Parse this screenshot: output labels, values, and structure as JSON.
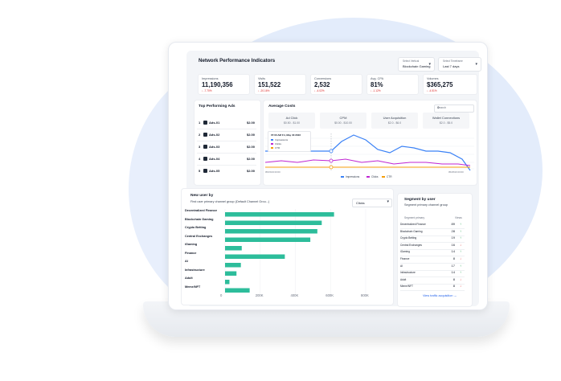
{
  "dashboard": {
    "title": "Network Performance Indicators"
  },
  "filters": {
    "vertical": {
      "label": "Select Vertical",
      "value": "Blockchain Gaming"
    },
    "timeframe": {
      "label": "Select Timeframe",
      "value": "Last 7 days"
    }
  },
  "kpis": [
    {
      "label": "Impressions",
      "value": "11,190,356",
      "delta": "↓ -7.70%"
    },
    {
      "label": "Visits",
      "value": "151,522",
      "delta": "↓ -20.16%"
    },
    {
      "label": "Conversions",
      "value": "2,532",
      "delta": "↓ -4.02%"
    },
    {
      "label": "Avg. CPA",
      "value": "81%",
      "delta": "↓ -1.12%"
    },
    {
      "label": "Volumes",
      "value": "$365,275",
      "delta": "↓ -4.51%"
    }
  ],
  "top_ads": {
    "title": "Top Performing Ads",
    "rows": [
      {
        "n": "1",
        "name": "Ads-01",
        "price": "$2.00"
      },
      {
        "n": "2",
        "name": "Ads-02",
        "price": "$2.00"
      },
      {
        "n": "3",
        "name": "Ads-03",
        "price": "$2.00"
      },
      {
        "n": "4",
        "name": "Ads-04",
        "price": "$2.00"
      },
      {
        "n": "5",
        "name": "Ads-05",
        "price": "$2.00"
      }
    ]
  },
  "avg_costs": {
    "title": "Average Costs",
    "search_placeholder": "Search",
    "items": [
      {
        "title": "Ad Click",
        "range": "$0.50 - $1.00"
      },
      {
        "title": "CPM",
        "range": "$0.00 - $10.00"
      },
      {
        "title": "User Acquisition",
        "range": "$2.0 - $6.0"
      },
      {
        "title": "Wallet Connections",
        "range": "$2.0 - $5.0"
      }
    ],
    "tooltip": {
      "date": "07:00 AM Fri, May 30 2023",
      "items": [
        "Impressions",
        "Clicks",
        "CTR"
      ]
    },
    "x_start": "05/15/23 00:00",
    "x_end": "05/25/23 00:00",
    "legend": [
      {
        "name": "Impressions",
        "color": "#3b82f6"
      },
      {
        "name": "Clicks",
        "color": "#c026d3"
      },
      {
        "name": "CTR",
        "color": "#f59e0b"
      }
    ]
  },
  "chart_data": {
    "type": "bar",
    "title": "New user by",
    "subtitle": "First user primary channel group (Default Channel Grou...)",
    "metric": "Clicks",
    "categories": [
      "Decentralized Finance",
      "Blockchain Gaming",
      "Crypto Betting",
      "Central Exchanges",
      "iGaming",
      "Finance",
      "AI",
      "Infrastructure",
      "Adult",
      "Meme/NFT"
    ],
    "values": [
      620000,
      550000,
      525000,
      485000,
      95000,
      340000,
      90000,
      65000,
      25000,
      140000
    ],
    "x_ticks": [
      "0",
      "200K",
      "400K",
      "600K",
      "800K"
    ],
    "xlim": [
      0,
      800000
    ],
    "color": "#2dbd9b"
  },
  "segment": {
    "title": "Segment by user",
    "subtitle": "Segment primary channel group",
    "col_segment": "Segment primary",
    "col_views": "Views",
    "rows": [
      {
        "name": "Decentralized Finance",
        "value": "89",
        "arrow": "↑"
      },
      {
        "name": "Blockchain Gaming",
        "value": "28",
        "arrow": "↑"
      },
      {
        "name": "Crypto Betting",
        "value": "19",
        "arrow": "↑"
      },
      {
        "name": "Central Exchanges",
        "value": "16",
        "arrow": "↓"
      },
      {
        "name": "iGaming",
        "value": "14",
        "arrow": "↑"
      },
      {
        "name": "Finance",
        "value": "8",
        "arrow": "↓"
      },
      {
        "name": "AI",
        "value": "17",
        "arrow": "↑"
      },
      {
        "name": "Infrastructure",
        "value": "14",
        "arrow": "↑"
      },
      {
        "name": "Adult",
        "value": "8",
        "arrow": "↓"
      },
      {
        "name": "Meme/NFT",
        "value": "8",
        "arrow": "↓"
      }
    ],
    "link": "View traffic acquisition →"
  },
  "colors": {
    "accent": "#2563eb",
    "bar": "#2dbd9b",
    "up": "#16a34a",
    "down": "#dc2626"
  }
}
